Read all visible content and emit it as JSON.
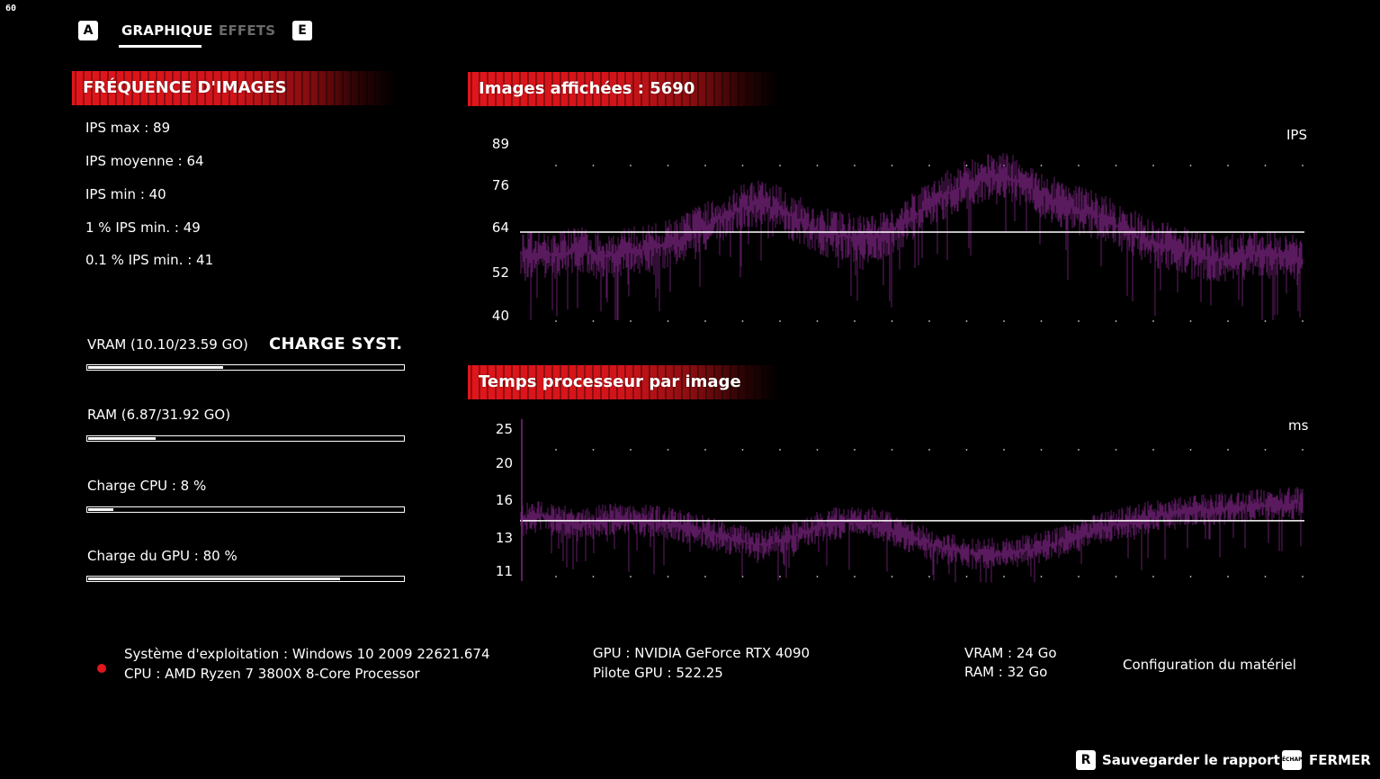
{
  "fps_counter": "60",
  "tabs": {
    "left_key": "A",
    "right_key": "E",
    "items": [
      {
        "label": "GRAPHIQUE",
        "active": true
      },
      {
        "label": "EFFETS",
        "active": false
      }
    ]
  },
  "framerate": {
    "title": "FRÉQUENCE D'IMAGES",
    "stats": [
      "IPS max : 89",
      "IPS moyenne : 64",
      "IPS min : 40",
      "1 % IPS min. : 49",
      "0.1 % IPS min. : 41"
    ]
  },
  "system_load": {
    "title": "CHARGE SYST.",
    "bars": [
      {
        "label": "VRAM (10.10/23.59 GO)",
        "fraction": 0.428
      },
      {
        "label": "RAM (6.87/31.92 GO)",
        "fraction": 0.215
      },
      {
        "label": "Charge CPU : 8 %",
        "fraction": 0.08
      },
      {
        "label": "Charge du GPU : 80 %",
        "fraction": 0.8
      }
    ]
  },
  "charts": {
    "fps": {
      "header": "Images affichées : 5690",
      "unit": "IPS",
      "ticks": [
        "89",
        "76",
        "64",
        "52",
        "40"
      ],
      "average": 64
    },
    "cpu_time": {
      "header": "Temps processeur par image",
      "unit": "ms",
      "ticks": [
        "25",
        "20",
        "16",
        "13",
        "11"
      ],
      "average": 16
    }
  },
  "chart_data": [
    {
      "type": "line",
      "title": "Images affichées : 5690",
      "ylabel": "IPS",
      "ylim": [
        40,
        89
      ],
      "yticks": [
        89,
        76,
        64,
        52,
        40
      ],
      "grid": true,
      "series": [
        {
          "values": [
            58,
            57,
            58,
            59,
            57,
            58,
            59,
            60,
            62,
            65,
            68,
            71,
            72,
            70,
            67,
            64,
            63,
            62,
            63,
            66,
            70,
            74,
            77,
            79,
            80,
            78,
            75,
            72,
            70,
            68,
            65,
            62,
            60,
            59,
            57,
            56,
            57,
            58,
            57,
            56
          ]
        },
        {
          "name": "average",
          "values": [
            64
          ]
        }
      ],
      "color": "#5a1a5e"
    },
    {
      "type": "line",
      "title": "Temps processeur par image",
      "ylabel": "ms",
      "ylim": [
        11,
        25
      ],
      "yticks": [
        25,
        20,
        16,
        13,
        11
      ],
      "grid": true,
      "series": [
        {
          "values": [
            16,
            16.5,
            16,
            15.5,
            16,
            16.2,
            16,
            15.8,
            15.5,
            15,
            14.5,
            14,
            13.6,
            14,
            14.8,
            15.5,
            15.8,
            16,
            15.5,
            14.8,
            14,
            13.4,
            13,
            12.8,
            12.7,
            13,
            13.4,
            14,
            14.6,
            15.3,
            15.8,
            16.2,
            16.5,
            16.8,
            17,
            17.2,
            17.4,
            17.5,
            17.6,
            17.8
          ]
        },
        {
          "name": "average",
          "values": [
            16
          ]
        }
      ],
      "color": "#5a1a5e"
    }
  ],
  "hardware": {
    "os": "Système d'exploitation : Windows 10 2009 22621.674",
    "cpu": "CPU : AMD Ryzen 7 3800X 8-Core Processor",
    "gpu": "GPU : NVIDIA GeForce RTX 4090",
    "driver": "Pilote GPU : 522.25",
    "vram": "VRAM : 24 Go",
    "ram": "RAM : 32 Go",
    "config_label": "Configuration du matériel"
  },
  "footer": {
    "save_key": "R",
    "save_label": "Sauvegarder le rapport",
    "close_key": "ÉCHAP",
    "close_label": "FERMER"
  }
}
